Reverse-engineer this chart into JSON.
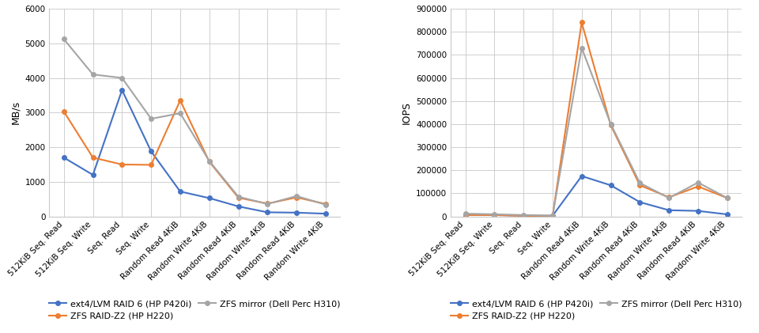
{
  "categories": [
    "512KiB Seq. Read",
    "512KiB Seq. Write",
    "Seq. Read",
    "Seq. Write",
    "Random Read 4KiB",
    "Random Write 4KiB",
    "Random Read 4KiB",
    "Random Write 4KiB",
    "Random Read 4KiB",
    "Random Write 4KiB"
  ],
  "left_ylabel": "MB/s",
  "right_ylabel": "IOPS",
  "left_ylim": [
    0,
    6000
  ],
  "right_ylim": [
    0,
    900000
  ],
  "left_yticks": [
    0,
    1000,
    2000,
    3000,
    4000,
    5000,
    6000
  ],
  "right_yticks": [
    0,
    100000,
    200000,
    300000,
    400000,
    500000,
    600000,
    700000,
    800000,
    900000
  ],
  "series": {
    "ext4_lvm": {
      "label": "ext4/LVM RAID 6 (HP P420i)",
      "color": "#4472C4",
      "marker": "o",
      "mb_values": [
        1700,
        1200,
        3650,
        1880,
        720,
        530,
        290,
        120,
        110,
        80
      ],
      "iops_values": [
        6500,
        6200,
        3200,
        3000,
        175000,
        135000,
        62000,
        27000,
        24000,
        9000
      ]
    },
    "zfs_raidz2": {
      "label": "ZFS RAID-Z2 (HP H220)",
      "color": "#ED7D31",
      "marker": "o",
      "mb_values": [
        3030,
        1700,
        1500,
        1490,
        3350,
        1580,
        540,
        370,
        550,
        360
      ],
      "iops_values": [
        6200,
        6000,
        2900,
        2800,
        840000,
        395000,
        135000,
        83000,
        130000,
        80000
      ]
    },
    "zfs_mirror": {
      "label": "ZFS mirror (Dell Perc H310)",
      "color": "#A5A5A5",
      "marker": "o",
      "mb_values": [
        5120,
        4100,
        4000,
        2820,
        2980,
        1600,
        570,
        360,
        590,
        340
      ],
      "iops_values": [
        12000,
        9500,
        6200,
        3000,
        730000,
        400000,
        145000,
        80000,
        147000,
        80000
      ]
    }
  },
  "background_color": "#ffffff",
  "grid_color": "#c8c8c8",
  "axis_label_fontsize": 9,
  "tick_fontsize": 7.5,
  "legend_fontsize": 8
}
